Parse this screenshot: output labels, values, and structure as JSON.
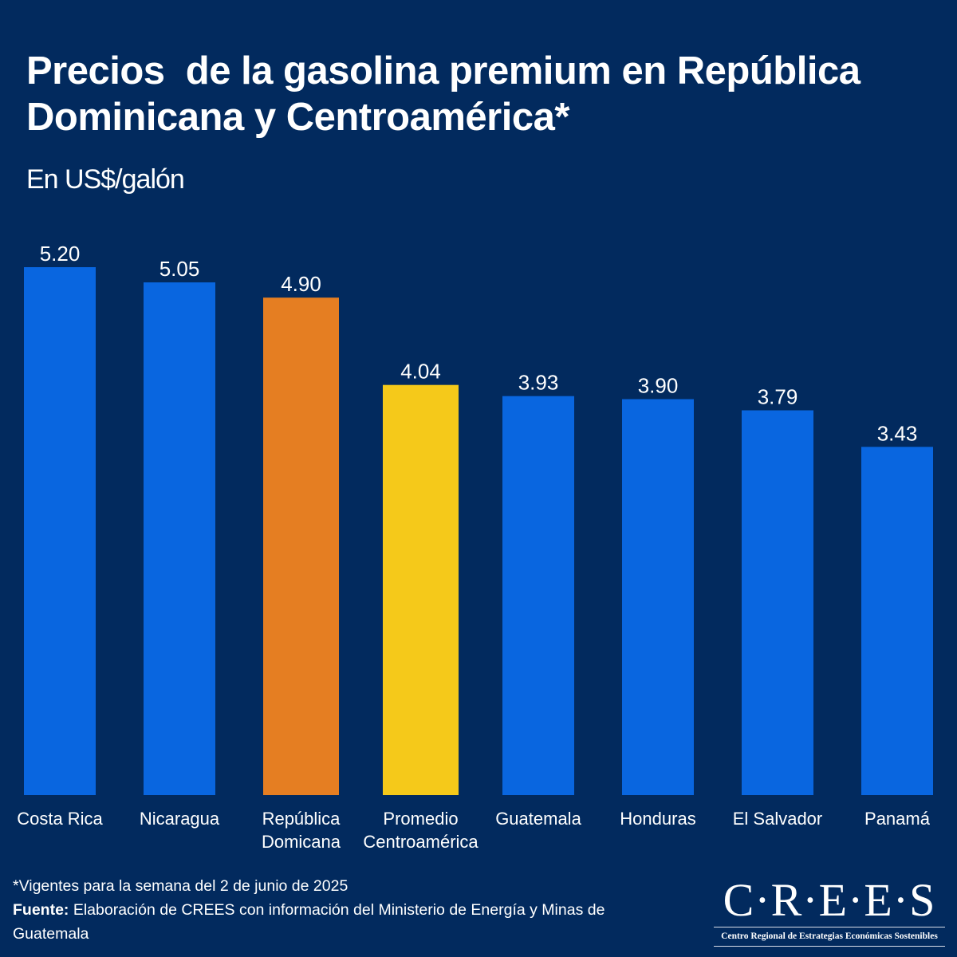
{
  "header": {
    "title": "Precios  de la gasolina premium en República Dominicana y Centroamérica*",
    "subtitle": "En US$/galón"
  },
  "chart_data": {
    "type": "bar",
    "title": "Precios  de la gasolina premium en República Dominicana y Centroamérica*",
    "subtitle": "En US$/galón",
    "xlabel": "",
    "ylabel": "US$/galón",
    "ylim": [
      0,
      5.2
    ],
    "grid": false,
    "legend": "none",
    "categories": [
      "Costa Rica",
      "Nicaragua",
      "República\nDomicana",
      "Promedio\nCentroamérica",
      "Guatemala",
      "Honduras",
      "El Salvador",
      "Panamá"
    ],
    "values": [
      5.2,
      5.05,
      4.9,
      4.04,
      3.93,
      3.9,
      3.79,
      3.43
    ],
    "data_labels": [
      "5.20",
      "5.05",
      "4.90",
      "4.04",
      "3.93",
      "3.90",
      "3.79",
      "3.43"
    ],
    "colors": [
      "#0966e0",
      "#0966e0",
      "#e57e22",
      "#f5c91a",
      "#0966e0",
      "#0966e0",
      "#0966e0",
      "#0966e0"
    ]
  },
  "footer": {
    "footnote": "*Vigentes para la semana del 2 de junio de 2025",
    "source_label": "Fuente:",
    "source_text": " Elaboración de CREES con información del Ministerio de Energía y Minas de Guatemala"
  },
  "logo": {
    "mark": "C·R·E·E·S",
    "tagline": "Centro Regional de Estrategias Económicas Sostenibles"
  },
  "colors": {
    "background": "#022a5e",
    "bar_default": "#0966e0",
    "bar_highlight": "#e57e22",
    "bar_average": "#f5c91a",
    "text": "#ffffff"
  }
}
